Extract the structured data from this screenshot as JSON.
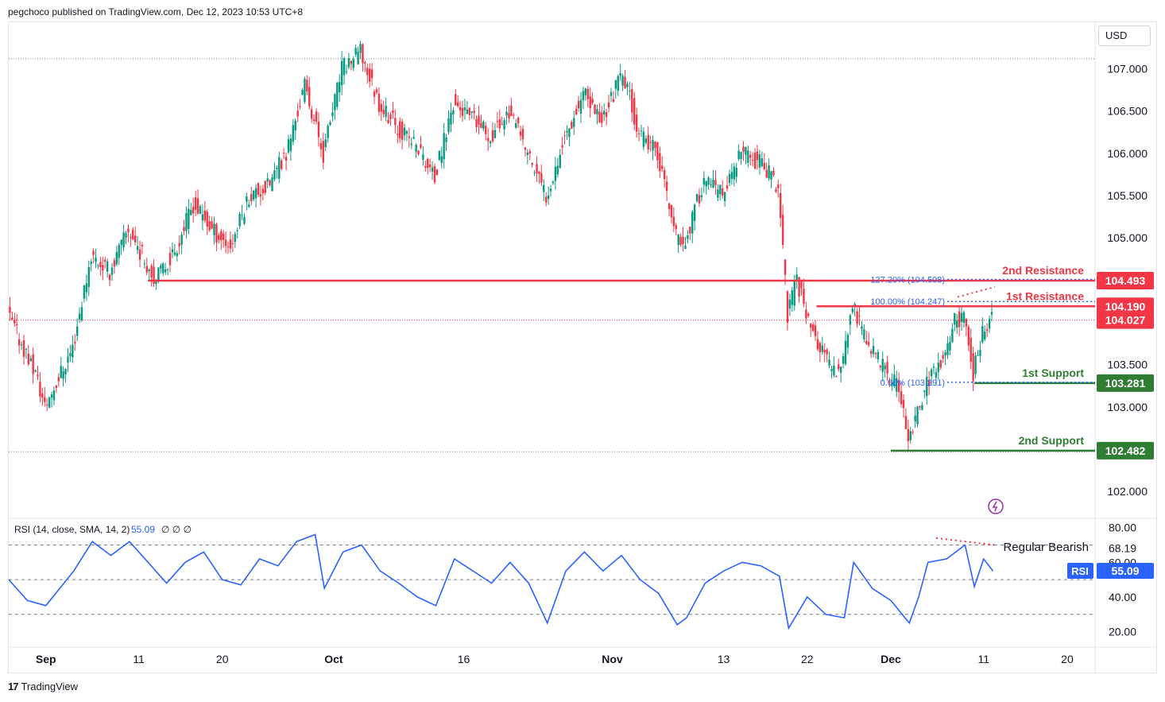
{
  "header": {
    "publish_line": "pegchoco published on TradingView.com, Dec 12, 2023 10:53 UTC+8"
  },
  "currency_label": "USD",
  "footer": {
    "brand": "TradingView"
  },
  "colors": {
    "up": "#089981",
    "down": "#f23645",
    "resistance": "#f23645",
    "support": "#2e7d32",
    "fib": "#2962ff",
    "rsi_line": "#2962ff",
    "last_price": "#f23645"
  },
  "chart_data": [
    {
      "type": "candlestick",
      "title": "",
      "xlabel": "",
      "ylabel": "",
      "currency": "USD",
      "ylim": [
        101.7,
        107.55
      ],
      "yticks": [
        "102.000",
        "103.000",
        "103.500",
        "105.000",
        "105.500",
        "106.000",
        "106.500",
        "107.000"
      ],
      "x_tick_labels": [
        {
          "label": "Sep",
          "date": "2023-09-01"
        },
        {
          "label": "11",
          "date": "2023-09-11"
        },
        {
          "label": "20",
          "date": "2023-09-20"
        },
        {
          "label": "Oct",
          "date": "2023-10-02"
        },
        {
          "label": "16",
          "date": "2023-10-16"
        },
        {
          "label": "Nov",
          "date": "2023-11-01"
        },
        {
          "label": "13",
          "date": "2023-11-13"
        },
        {
          "label": "22",
          "date": "2023-11-22"
        },
        {
          "label": "Dec",
          "date": "2023-12-01"
        },
        {
          "label": "11",
          "date": "2023-12-11"
        },
        {
          "label": "20",
          "date": "2023-12-20"
        }
      ],
      "x_range": [
        "2023-08-28",
        "2023-12-23"
      ],
      "close_path": [
        {
          "date": "2023-08-28",
          "close": 104.1
        },
        {
          "date": "2023-08-31",
          "close": 103.4
        },
        {
          "date": "2023-09-01",
          "close": 103.0
        },
        {
          "date": "2023-09-04",
          "close": 103.7
        },
        {
          "date": "2023-09-06",
          "close": 104.8
        },
        {
          "date": "2023-09-08",
          "close": 104.6
        },
        {
          "date": "2023-09-10",
          "close": 105.1
        },
        {
          "date": "2023-09-12",
          "close": 104.7
        },
        {
          "date": "2023-09-13",
          "close": 104.5
        },
        {
          "date": "2023-09-15",
          "close": 104.85
        },
        {
          "date": "2023-09-17",
          "close": 105.4
        },
        {
          "date": "2023-09-19",
          "close": 105.1
        },
        {
          "date": "2023-09-21",
          "close": 104.9
        },
        {
          "date": "2023-09-23",
          "close": 105.5
        },
        {
          "date": "2023-09-25",
          "close": 105.6
        },
        {
          "date": "2023-09-27",
          "close": 106.0
        },
        {
          "date": "2023-09-29",
          "close": 106.8
        },
        {
          "date": "2023-10-01",
          "close": 106.0
        },
        {
          "date": "2023-10-03",
          "close": 107.0
        },
        {
          "date": "2023-10-05",
          "close": 107.2
        },
        {
          "date": "2023-10-07",
          "close": 106.6
        },
        {
          "date": "2023-10-09",
          "close": 106.3
        },
        {
          "date": "2023-10-11",
          "close": 106.1
        },
        {
          "date": "2023-10-13",
          "close": 105.7
        },
        {
          "date": "2023-10-15",
          "close": 106.6
        },
        {
          "date": "2023-10-17",
          "close": 106.4
        },
        {
          "date": "2023-10-19",
          "close": 106.2
        },
        {
          "date": "2023-10-21",
          "close": 106.5
        },
        {
          "date": "2023-10-23",
          "close": 106.0
        },
        {
          "date": "2023-10-25",
          "close": 105.5
        },
        {
          "date": "2023-10-27",
          "close": 106.2
        },
        {
          "date": "2023-10-29",
          "close": 106.7
        },
        {
          "date": "2023-10-31",
          "close": 106.4
        },
        {
          "date": "2023-11-02",
          "close": 106.9
        },
        {
          "date": "2023-11-03",
          "close": 106.7
        },
        {
          "date": "2023-11-04",
          "close": 106.2
        },
        {
          "date": "2023-11-06",
          "close": 106.0
        },
        {
          "date": "2023-11-08",
          "close": 105.0
        },
        {
          "date": "2023-11-09",
          "close": 104.95
        },
        {
          "date": "2023-11-11",
          "close": 105.7
        },
        {
          "date": "2023-11-13",
          "close": 105.5
        },
        {
          "date": "2023-11-15",
          "close": 106.0
        },
        {
          "date": "2023-11-17",
          "close": 105.9
        },
        {
          "date": "2023-11-19",
          "close": 105.6
        },
        {
          "date": "2023-11-20",
          "close": 104.1
        },
        {
          "date": "2023-11-21",
          "close": 104.5
        },
        {
          "date": "2023-11-23",
          "close": 103.8
        },
        {
          "date": "2023-11-25",
          "close": 103.4
        },
        {
          "date": "2023-11-26",
          "close": 103.6
        },
        {
          "date": "2023-11-27",
          "close": 104.2
        },
        {
          "date": "2023-11-28",
          "close": 103.9
        },
        {
          "date": "2023-11-30",
          "close": 103.5
        },
        {
          "date": "2023-12-02",
          "close": 103.2
        },
        {
          "date": "2023-12-03",
          "close": 102.6
        },
        {
          "date": "2023-12-04",
          "close": 102.9
        },
        {
          "date": "2023-12-05",
          "close": 103.3
        },
        {
          "date": "2023-12-07",
          "close": 103.6
        },
        {
          "date": "2023-12-08",
          "close": 104.0
        },
        {
          "date": "2023-12-09",
          "close": 104.1
        },
        {
          "date": "2023-12-10",
          "close": 103.4
        },
        {
          "date": "2023-12-11",
          "close": 103.9
        },
        {
          "date": "2023-12-12",
          "close": 104.03
        }
      ],
      "last_price": "104.027",
      "levels": [
        {
          "name": "2nd Resistance",
          "value": 104.493,
          "label": "104.493",
          "role": "resistance",
          "start": "2023-09-12"
        },
        {
          "name": "1st Resistance",
          "value": 104.19,
          "label": "104.190",
          "role": "resistance",
          "start": "2023-11-23"
        },
        {
          "name": "1st Support",
          "value": 103.281,
          "label": "103.281",
          "role": "support",
          "start": "2023-12-10"
        },
        {
          "name": "2nd Support",
          "value": 102.482,
          "label": "102.482",
          "role": "support",
          "start": "2023-12-01"
        }
      ],
      "fib_levels": [
        {
          "label": "127.20% (104.508)",
          "value": 104.508
        },
        {
          "label": "100.00% (104.247)",
          "value": 104.247
        },
        {
          "label": "0.00% (103.291)",
          "value": 103.291
        }
      ],
      "grid": false
    },
    {
      "type": "line",
      "title": "",
      "indicator_label": "RSI (14, close, SMA, 14, 2)",
      "indicator_value": "55.09",
      "indicator_extra": "∅ ∅ ∅",
      "badge_label": "RSI",
      "annotation": "Regular Bearish",
      "ylim": [
        12,
        84
      ],
      "yticks": [
        "80.00",
        "68.19",
        "60.00",
        "40.00",
        "20.00"
      ],
      "bands": [
        70,
        50,
        30
      ],
      "series": [
        {
          "values": [
            {
              "date": "2023-08-28",
              "rsi": 50
            },
            {
              "date": "2023-08-30",
              "rsi": 38
            },
            {
              "date": "2023-09-01",
              "rsi": 35
            },
            {
              "date": "2023-09-04",
              "rsi": 55
            },
            {
              "date": "2023-09-06",
              "rsi": 72
            },
            {
              "date": "2023-09-08",
              "rsi": 64
            },
            {
              "date": "2023-09-10",
              "rsi": 72
            },
            {
              "date": "2023-09-12",
              "rsi": 60
            },
            {
              "date": "2023-09-14",
              "rsi": 48
            },
            {
              "date": "2023-09-16",
              "rsi": 60
            },
            {
              "date": "2023-09-18",
              "rsi": 66
            },
            {
              "date": "2023-09-20",
              "rsi": 50
            },
            {
              "date": "2023-09-22",
              "rsi": 47
            },
            {
              "date": "2023-09-24",
              "rsi": 62
            },
            {
              "date": "2023-09-26",
              "rsi": 58
            },
            {
              "date": "2023-09-28",
              "rsi": 72
            },
            {
              "date": "2023-09-30",
              "rsi": 76
            },
            {
              "date": "2023-10-01",
              "rsi": 45
            },
            {
              "date": "2023-10-03",
              "rsi": 66
            },
            {
              "date": "2023-10-05",
              "rsi": 70
            },
            {
              "date": "2023-10-07",
              "rsi": 55
            },
            {
              "date": "2023-10-09",
              "rsi": 48
            },
            {
              "date": "2023-10-11",
              "rsi": 40
            },
            {
              "date": "2023-10-13",
              "rsi": 35
            },
            {
              "date": "2023-10-15",
              "rsi": 62
            },
            {
              "date": "2023-10-17",
              "rsi": 55
            },
            {
              "date": "2023-10-19",
              "rsi": 48
            },
            {
              "date": "2023-10-21",
              "rsi": 60
            },
            {
              "date": "2023-10-23",
              "rsi": 48
            },
            {
              "date": "2023-10-25",
              "rsi": 25
            },
            {
              "date": "2023-10-27",
              "rsi": 55
            },
            {
              "date": "2023-10-29",
              "rsi": 66
            },
            {
              "date": "2023-10-31",
              "rsi": 55
            },
            {
              "date": "2023-11-02",
              "rsi": 64
            },
            {
              "date": "2023-11-04",
              "rsi": 50
            },
            {
              "date": "2023-11-06",
              "rsi": 42
            },
            {
              "date": "2023-11-08",
              "rsi": 24
            },
            {
              "date": "2023-11-09",
              "rsi": 28
            },
            {
              "date": "2023-11-11",
              "rsi": 48
            },
            {
              "date": "2023-11-13",
              "rsi": 55
            },
            {
              "date": "2023-11-15",
              "rsi": 60
            },
            {
              "date": "2023-11-17",
              "rsi": 58
            },
            {
              "date": "2023-11-19",
              "rsi": 52
            },
            {
              "date": "2023-11-20",
              "rsi": 22
            },
            {
              "date": "2023-11-22",
              "rsi": 40
            },
            {
              "date": "2023-11-24",
              "rsi": 30
            },
            {
              "date": "2023-11-26",
              "rsi": 28
            },
            {
              "date": "2023-11-27",
              "rsi": 60
            },
            {
              "date": "2023-11-29",
              "rsi": 45
            },
            {
              "date": "2023-12-01",
              "rsi": 38
            },
            {
              "date": "2023-12-03",
              "rsi": 25
            },
            {
              "date": "2023-12-04",
              "rsi": 40
            },
            {
              "date": "2023-12-05",
              "rsi": 60
            },
            {
              "date": "2023-12-07",
              "rsi": 62
            },
            {
              "date": "2023-12-09",
              "rsi": 70
            },
            {
              "date": "2023-12-10",
              "rsi": 46
            },
            {
              "date": "2023-12-11",
              "rsi": 62
            },
            {
              "date": "2023-12-12",
              "rsi": 55
            }
          ]
        }
      ]
    }
  ]
}
